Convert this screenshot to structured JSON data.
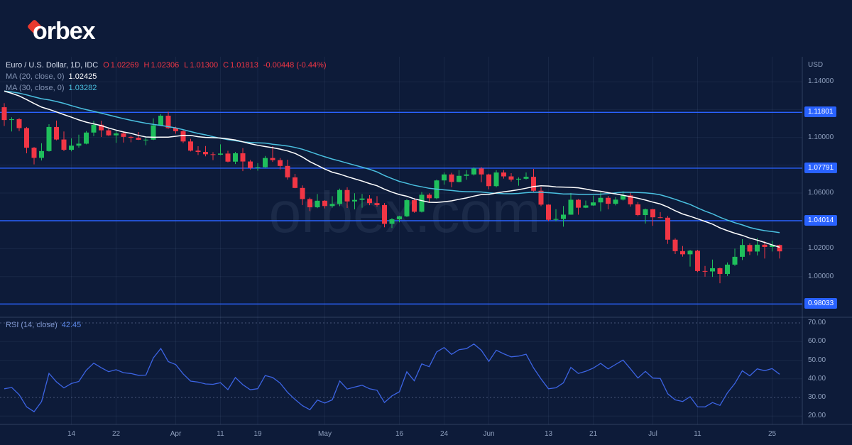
{
  "brand": {
    "logo_text": "orbex"
  },
  "watermark": "orbex.com",
  "legend": {
    "symbol": "Euro / U.S. Dollar, 1D, IDC",
    "ohlc": {
      "o_label": "O",
      "o": "1.02269",
      "h_label": "H",
      "h": "1.02306",
      "l_label": "L",
      "l": "1.01300",
      "c_label": "C",
      "c": "1.01813",
      "change": "-0.00448 (-0.44%)"
    },
    "ma20": {
      "label": "MA (20, close, 0)",
      "value": "1.02425"
    },
    "ma30": {
      "label": "MA (30, close, 0)",
      "value": "1.03282"
    },
    "rsi": {
      "label": "RSI (14, close)",
      "value": "42.45"
    }
  },
  "axis": {
    "unit": "USD",
    "price_ticks": [
      {
        "label": "1.14000",
        "value": 1.14
      },
      {
        "label": "1.10000",
        "value": 1.1
      },
      {
        "label": "1.06000",
        "value": 1.06
      },
      {
        "label": "1.02000",
        "value": 1.02
      },
      {
        "label": "1.00000",
        "value": 1.0
      }
    ],
    "rsi_ticks": [
      {
        "label": "70.00",
        "value": 70
      },
      {
        "label": "60.00",
        "value": 60
      },
      {
        "label": "50.00",
        "value": 50
      },
      {
        "label": "40.00",
        "value": 40
      },
      {
        "label": "30.00",
        "value": 30
      },
      {
        "label": "20.00",
        "value": 20
      }
    ],
    "time_ticks": [
      {
        "label": "14",
        "i": 9
      },
      {
        "label": "22",
        "i": 15
      },
      {
        "label": "Apr",
        "i": 23
      },
      {
        "label": "11",
        "i": 29
      },
      {
        "label": "19",
        "i": 34
      },
      {
        "label": "May",
        "i": 43
      },
      {
        "label": "16",
        "i": 53
      },
      {
        "label": "24",
        "i": 59
      },
      {
        "label": "Jun",
        "i": 65
      },
      {
        "label": "13",
        "i": 73
      },
      {
        "label": "21",
        "i": 79
      },
      {
        "label": "Jul",
        "i": 87
      },
      {
        "label": "11",
        "i": 93
      },
      {
        "label": "25",
        "i": 103
      }
    ]
  },
  "levels": [
    {
      "label": "1.11801",
      "value": 1.11801
    },
    {
      "label": "1.07791",
      "value": 1.07791
    },
    {
      "label": "1.04014",
      "value": 1.04014
    },
    {
      "label": "0.98033",
      "value": 0.98033
    }
  ],
  "colors": {
    "background": "#0d1b39",
    "up": "#1fbf5c",
    "down": "#f23645",
    "level": "#2962ff",
    "badge_bg": "#2962ff",
    "ma20": "#ffffff",
    "ma30": "#4ac0e0",
    "rsi": "#3c64e4",
    "rsi_band": "rgba(140,160,200,0.45)",
    "grid": "rgba(130,150,190,0.10)",
    "border": "rgba(130,150,190,0.30)",
    "accent": "#e8392e"
  },
  "chart_data": {
    "type": "candlestick",
    "title": "Euro / U.S. Dollar, 1D, IDC",
    "interval": "1D",
    "unit": "USD",
    "ylim": [
      0.9717,
      1.1553
    ],
    "levels": [
      1.11801,
      1.07791,
      1.04014,
      0.98033
    ],
    "indicators": [
      {
        "name": "MA",
        "period": 20,
        "last": "1.02425"
      },
      {
        "name": "MA",
        "period": 30,
        "last": "1.03282"
      },
      {
        "name": "RSI",
        "period": 14,
        "last": "42.45"
      }
    ],
    "ma_warmup_closes": [
      1.1306,
      1.1313,
      1.1324,
      1.1303,
      1.1287,
      1.13,
      1.1318,
      1.1344,
      1.1308,
      1.1432,
      1.1409,
      1.1441,
      1.1451,
      1.1444,
      1.1412,
      1.1426,
      1.1398,
      1.1352,
      1.1305,
      1.1301,
      1.1346,
      1.1365,
      1.1329,
      1.1311,
      1.1353,
      1.1331,
      1.1285,
      1.119,
      1.127,
      1.1217
    ],
    "candles": [
      [
        1.1217,
        1.1246,
        1.1082,
        1.1125
      ],
      [
        1.1125,
        1.1145,
        1.1043,
        1.1131
      ],
      [
        1.1131,
        1.1139,
        1.1045,
        1.1067
      ],
      [
        1.1067,
        1.1075,
        1.0886,
        1.0926
      ],
      [
        1.0926,
        1.0931,
        1.0806,
        1.0853
      ],
      [
        1.0853,
        1.0958,
        1.0834,
        1.0902
      ],
      [
        1.0902,
        1.1095,
        1.0898,
        1.1075
      ],
      [
        1.1075,
        1.1121,
        1.0979,
        1.0985
      ],
      [
        1.0985,
        1.1043,
        1.0901,
        1.0911
      ],
      [
        1.0911,
        1.0993,
        1.09,
        1.0941
      ],
      [
        1.0941,
        1.102,
        1.0927,
        1.0955
      ],
      [
        1.0955,
        1.1046,
        1.095,
        1.1035
      ],
      [
        1.1035,
        1.1119,
        1.1009,
        1.1091
      ],
      [
        1.1091,
        1.112,
        1.1003,
        1.1051
      ],
      [
        1.1051,
        1.1069,
        1.101,
        1.1015
      ],
      [
        1.1015,
        1.1047,
        1.0961,
        1.1029
      ],
      [
        1.1029,
        1.1044,
        1.0963,
        1.1004
      ],
      [
        1.1004,
        1.1014,
        1.0965,
        1.0997
      ],
      [
        1.0997,
        1.1039,
        1.0981,
        1.0983
      ],
      [
        1.0983,
        1.0999,
        1.0944,
        1.0984
      ],
      [
        1.0984,
        1.1137,
        1.0981,
        1.1087
      ],
      [
        1.1087,
        1.1167,
        1.1083,
        1.1156
      ],
      [
        1.1156,
        1.1185,
        1.1061,
        1.1067
      ],
      [
        1.1067,
        1.1077,
        1.1027,
        1.1045
      ],
      [
        1.1045,
        1.1055,
        1.096,
        1.0971
      ],
      [
        1.0971,
        1.099,
        1.0899,
        1.0905
      ],
      [
        1.0905,
        1.0937,
        1.0874,
        1.0896
      ],
      [
        1.0896,
        1.0938,
        1.0864,
        1.0879
      ],
      [
        1.0879,
        1.0894,
        1.0837,
        1.0876
      ],
      [
        1.0876,
        1.095,
        1.0872,
        1.0884
      ],
      [
        1.0884,
        1.0904,
        1.0821,
        1.0826
      ],
      [
        1.0826,
        1.0896,
        1.0809,
        1.0886
      ],
      [
        1.0886,
        1.0923,
        1.0758,
        1.0827
      ],
      [
        1.0827,
        1.0838,
        1.0769,
        1.0781
      ],
      [
        1.0781,
        1.0815,
        1.0761,
        1.0786
      ],
      [
        1.0786,
        1.0867,
        1.0783,
        1.0852
      ],
      [
        1.0852,
        1.0936,
        1.0824,
        1.0837
      ],
      [
        1.0837,
        1.0852,
        1.077,
        1.0795
      ],
      [
        1.0795,
        1.084,
        1.0697,
        1.0713
      ],
      [
        1.0713,
        1.0738,
        1.0635,
        1.0637
      ],
      [
        1.0637,
        1.0655,
        1.0514,
        1.0557
      ],
      [
        1.0557,
        1.0567,
        1.0471,
        1.0498
      ],
      [
        1.0498,
        1.0593,
        1.0492,
        1.0545
      ],
      [
        1.0545,
        1.0549,
        1.049,
        1.0507
      ],
      [
        1.0507,
        1.0578,
        1.0495,
        1.0522
      ],
      [
        1.0522,
        1.0632,
        1.0506,
        1.0622
      ],
      [
        1.0622,
        1.0642,
        1.0493,
        1.054
      ],
      [
        1.054,
        1.0599,
        1.0483,
        1.0551
      ],
      [
        1.0551,
        1.0594,
        1.0495,
        1.0561
      ],
      [
        1.0561,
        1.0585,
        1.0513,
        1.0528
      ],
      [
        1.0528,
        1.0578,
        1.0502,
        1.0514
      ],
      [
        1.0514,
        1.0528,
        1.0354,
        1.0379
      ],
      [
        1.0379,
        1.042,
        1.0349,
        1.0412
      ],
      [
        1.0412,
        1.0437,
        1.039,
        1.0433
      ],
      [
        1.0433,
        1.0556,
        1.0428,
        1.0549
      ],
      [
        1.0549,
        1.0564,
        1.0459,
        1.0466
      ],
      [
        1.0466,
        1.0607,
        1.0461,
        1.0588
      ],
      [
        1.0588,
        1.0599,
        1.0534,
        1.0563
      ],
      [
        1.0563,
        1.0697,
        1.0556,
        1.0691
      ],
      [
        1.0691,
        1.0748,
        1.0661,
        1.0734
      ],
      [
        1.0734,
        1.0746,
        1.0642,
        1.068
      ],
      [
        1.068,
        1.0765,
        1.0677,
        1.0724
      ],
      [
        1.0724,
        1.0765,
        1.0696,
        1.0734
      ],
      [
        1.0734,
        1.0786,
        1.0726,
        1.0777
      ],
      [
        1.0777,
        1.0787,
        1.0678,
        1.0734
      ],
      [
        1.0734,
        1.0739,
        1.0627,
        1.065
      ],
      [
        1.065,
        1.0764,
        1.0642,
        1.0748
      ],
      [
        1.0748,
        1.0765,
        1.0704,
        1.072
      ],
      [
        1.072,
        1.0743,
        1.0683,
        1.0697
      ],
      [
        1.0697,
        1.0713,
        1.0653,
        1.0703
      ],
      [
        1.0703,
        1.0748,
        1.0697,
        1.0717
      ],
      [
        1.0717,
        1.0774,
        1.0611,
        1.0617
      ],
      [
        1.0617,
        1.0643,
        1.0506,
        1.0517
      ],
      [
        1.0517,
        1.0519,
        1.0399,
        1.0408
      ],
      [
        1.0408,
        1.0484,
        1.0397,
        1.0414
      ],
      [
        1.0414,
        1.0507,
        1.0359,
        1.0445
      ],
      [
        1.0445,
        1.0601,
        1.0444,
        1.0552
      ],
      [
        1.0552,
        1.0557,
        1.0445,
        1.0495
      ],
      [
        1.0495,
        1.0546,
        1.0492,
        1.0511
      ],
      [
        1.0511,
        1.0582,
        1.0508,
        1.0533
      ],
      [
        1.0533,
        1.0606,
        1.0469,
        1.0566
      ],
      [
        1.0566,
        1.058,
        1.0483,
        1.0523
      ],
      [
        1.0523,
        1.0571,
        1.0512,
        1.0553
      ],
      [
        1.0553,
        1.0614,
        1.0547,
        1.0583
      ],
      [
        1.0583,
        1.0606,
        1.0503,
        1.0519
      ],
      [
        1.0519,
        1.0536,
        1.0434,
        1.0442
      ],
      [
        1.0442,
        1.0489,
        1.0381,
        1.0484
      ],
      [
        1.0484,
        1.0486,
        1.0365,
        1.0426
      ],
      [
        1.0426,
        1.0463,
        1.0419,
        1.0423
      ],
      [
        1.0423,
        1.0436,
        1.0235,
        1.0265
      ],
      [
        1.0265,
        1.0275,
        1.0162,
        1.0183
      ],
      [
        1.0183,
        1.022,
        1.0143,
        1.016
      ],
      [
        1.016,
        1.0192,
        1.0072,
        1.0186
      ],
      [
        1.0186,
        1.0192,
        1.0032,
        1.004
      ],
      [
        1.004,
        1.0076,
        0.9999,
        1.0037
      ],
      [
        1.0037,
        1.0122,
        0.9998,
        1.006
      ],
      [
        1.006,
        1.0065,
        0.9952,
        1.0019
      ],
      [
        1.0019,
        1.0102,
        1.0005,
        1.0086
      ],
      [
        1.0086,
        1.0201,
        1.0076,
        1.0142
      ],
      [
        1.0142,
        1.0269,
        1.0119,
        1.0227
      ],
      [
        1.0227,
        1.0238,
        1.0155,
        1.018
      ],
      [
        1.018,
        1.0278,
        1.0152,
        1.0229
      ],
      [
        1.0229,
        1.0254,
        1.013,
        1.0213
      ],
      [
        1.0213,
        1.0258,
        1.018,
        1.0227
      ],
      [
        1.02269,
        1.02306,
        1.013,
        1.01813
      ]
    ]
  }
}
